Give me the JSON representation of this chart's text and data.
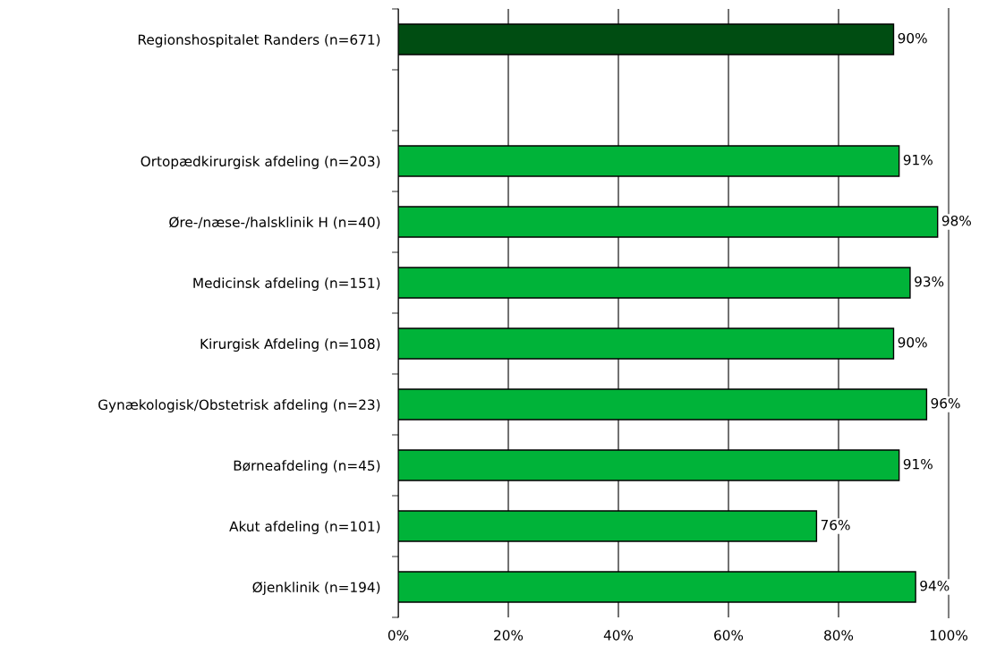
{
  "chart_data": {
    "type": "bar",
    "orientation": "horizontal",
    "categories": [
      "Regionshospitalet Randers (n=671)",
      null,
      "Ortopædkirurgisk afdeling (n=203)",
      "Øre-/næse-/halsklinik H (n=40)",
      "Medicinsk afdeling (n=151)",
      "Kirurgisk Afdeling (n=108)",
      "Gynækologisk/Obstetrisk afdeling (n=23)",
      "Børneafdeling (n=45)",
      "Akut afdeling (n=101)",
      "Øjenklinik (n=194)"
    ],
    "values": [
      90,
      null,
      91,
      98,
      93,
      90,
      96,
      91,
      76,
      94
    ],
    "colors": [
      "#004d12",
      "#00b339",
      "#00b339",
      "#00b339",
      "#00b339",
      "#00b339",
      "#00b339",
      "#00b339",
      "#00b339",
      "#00b339"
    ],
    "value_labels": [
      "90%",
      null,
      "91%",
      "98%",
      "93%",
      "90%",
      "96%",
      "91%",
      "76%",
      "94%"
    ],
    "xlim": [
      0,
      100
    ],
    "xticks": [
      {
        "value": 0,
        "label": "0%"
      },
      {
        "value": 20,
        "label": "20%"
      },
      {
        "value": 40,
        "label": "40%"
      },
      {
        "value": 60,
        "label": "60%"
      },
      {
        "value": 80,
        "label": "80%"
      },
      {
        "value": 100,
        "label": "100%"
      }
    ],
    "grid": "x",
    "legend": false
  }
}
